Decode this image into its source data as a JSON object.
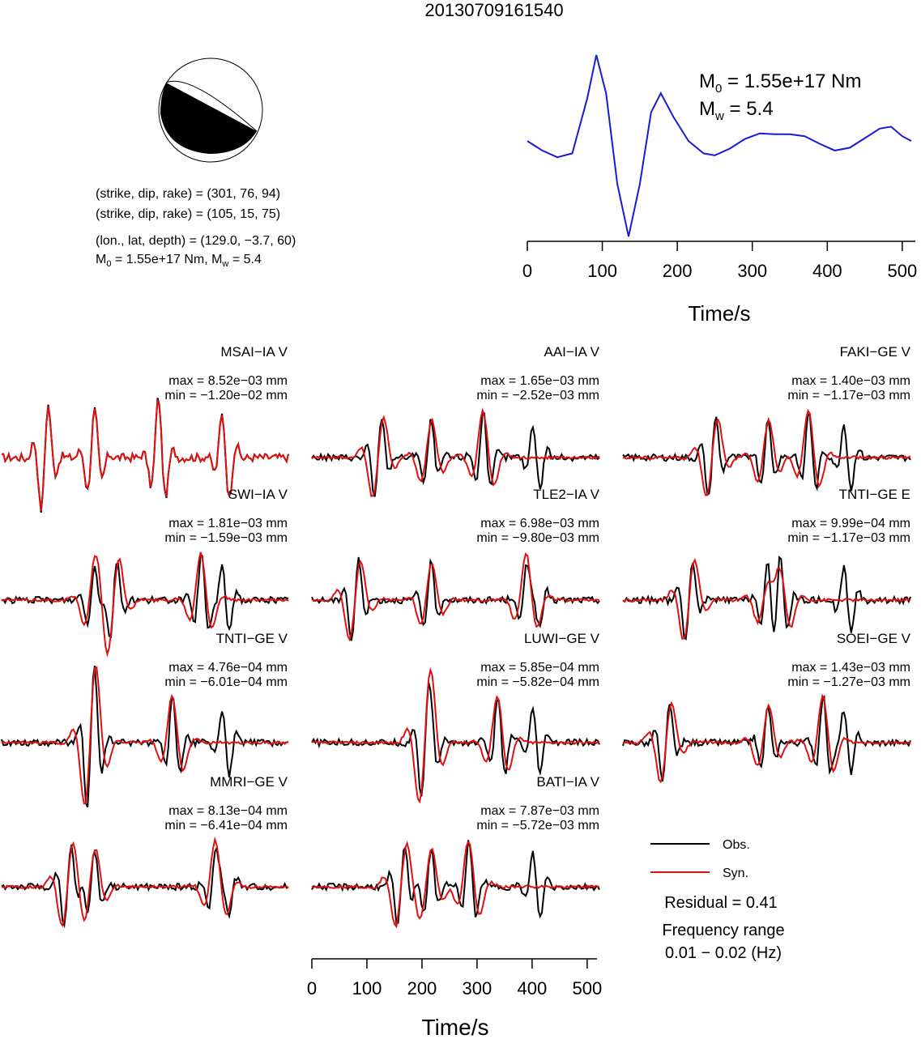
{
  "event_id": "20130709161540",
  "source": {
    "nodal_plane_1": "(strike, dip, rake) = (301, 76, 94)",
    "nodal_plane_2": "(strike, dip, rake) = (105, 15, 75)",
    "location": "(lon., lat, depth) = (129.0, −3.7, 60)",
    "moment_line": "M0 = 1.55e+17 Nm, Mw = 5.4",
    "strike": 301,
    "dip": 76,
    "rake": 94
  },
  "stf": {
    "m0_label": "M0 = 1.55e+17 Nm",
    "mw_label": "Mw = 5.4",
    "xlabel": "Time/s",
    "x_ticks": [
      "0",
      "100",
      "200",
      "300",
      "400",
      "500"
    ],
    "line_color": "#1a1ad6"
  },
  "stations": [
    {
      "name": "MSAI−IA V",
      "max": "max = 8.52e−03 mm",
      "min": "min = −1.20e−02 mm"
    },
    {
      "name": "AAI−IA V",
      "max": "max = 1.65e−03 mm",
      "min": "min = −2.52e−03 mm"
    },
    {
      "name": "FAKI−GE V",
      "max": "max = 1.40e−03 mm",
      "min": "min = −1.17e−03 mm"
    },
    {
      "name": "SWI−IA V",
      "max": "max = 1.81e−03 mm",
      "min": "min = −1.59e−03 mm"
    },
    {
      "name": "TLE2−IA V",
      "max": "max = 6.98e−03 mm",
      "min": "min = −9.80e−03 mm"
    },
    {
      "name": "TNTI−GE E",
      "max": "max = 9.99e−04 mm",
      "min": "min = −1.17e−03 mm"
    },
    {
      "name": "TNTI−GE V",
      "max": "max = 4.76e−04 mm",
      "min": "min = −6.01e−04 mm"
    },
    {
      "name": "LUWI−GE V",
      "max": "max = 5.85e−04 mm",
      "min": "min = −5.82e−04 mm"
    },
    {
      "name": "SOEI−GE V",
      "max": "max = 1.43e−03 mm",
      "min": "min = −1.27e−03 mm"
    },
    {
      "name": "MMRI−GE V",
      "max": "max = 8.13e−04 mm",
      "min": "min = −6.41e−04 mm"
    },
    {
      "name": "BATI−IA V",
      "max": "max = 7.87e−03 mm",
      "min": "min = −5.72e−03 mm"
    }
  ],
  "legend": {
    "obs": "Obs.",
    "syn": "Syn.",
    "obs_color": "#000000",
    "syn_color": "#e01010",
    "residual": "Residual = 0.41",
    "freq_label": "Frequency range",
    "freq_value": "0.01 − 0.02 (Hz)"
  },
  "bottom_axis": {
    "xlabel": "Time/s",
    "x_ticks": [
      "0",
      "100",
      "200",
      "300",
      "400",
      "500"
    ]
  },
  "chart_data": {
    "type": "line",
    "title": "20130709161540",
    "xlabel": "Time/s",
    "xlim": [
      0,
      512
    ],
    "stf_series": {
      "name": "source time function",
      "x": [
        0,
        20,
        40,
        60,
        80,
        92,
        105,
        120,
        135,
        150,
        165,
        178,
        195,
        215,
        235,
        250,
        270,
        290,
        310,
        330,
        350,
        370,
        390,
        410,
        430,
        450,
        470,
        485,
        500,
        512
      ],
      "y": [
        0.05,
        -0.05,
        -0.12,
        -0.08,
        0.5,
        0.95,
        0.55,
        -0.4,
        -0.95,
        -0.4,
        0.35,
        0.55,
        0.3,
        0.05,
        -0.08,
        -0.1,
        -0.03,
        0.07,
        0.13,
        0.12,
        0.12,
        0.1,
        0.02,
        -0.05,
        -0.02,
        0.08,
        0.18,
        0.2,
        0.1,
        0.05
      ]
    }
  }
}
